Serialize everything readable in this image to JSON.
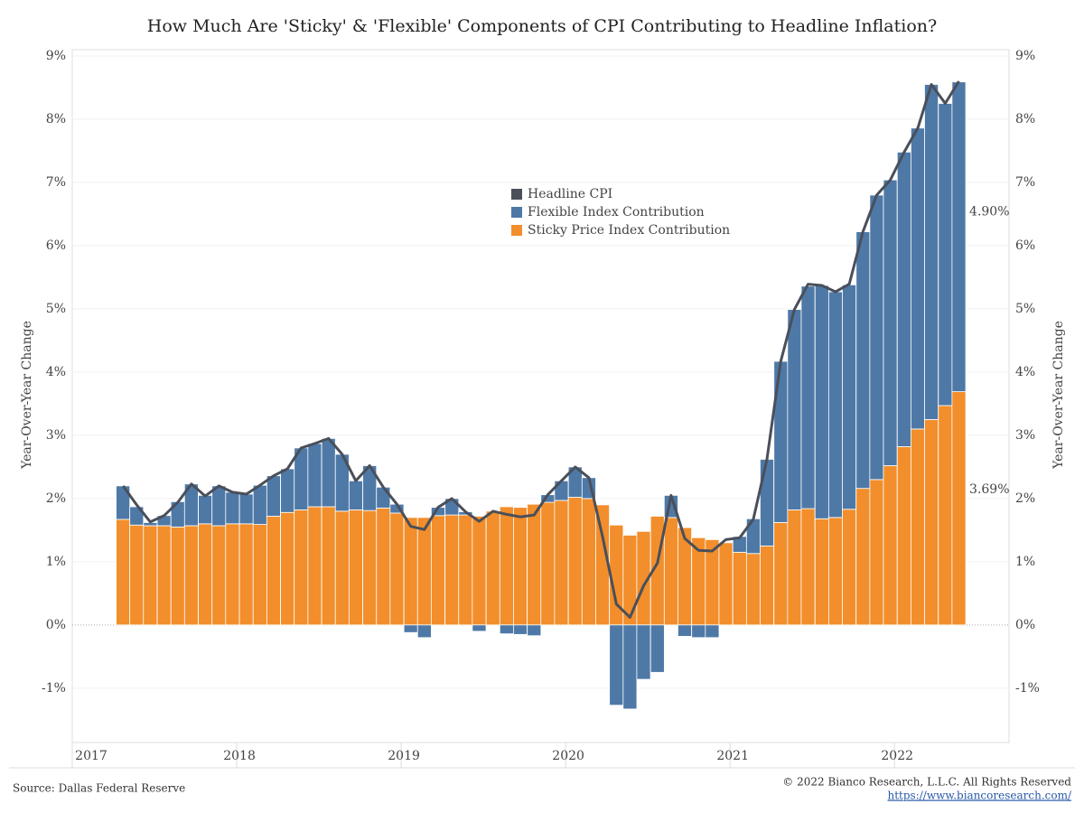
{
  "chart_data": {
    "type": "bar",
    "stacked": true,
    "title": "How Much Are 'Sticky' & 'Flexible' Components of CPI Contributing to Headline Inflation?",
    "ylabel": "Year-Over-Year Change",
    "y2label": "Year-Over-Year Change",
    "source": "Source: Dallas Federal Reserve",
    "copyright": "© 2022 Bianco Research, L.L.C. All Rights Reserved",
    "url": "https://www.biancoresearch.com/",
    "xlim": [
      2017,
      2022.68
    ],
    "xticks": [
      2017,
      2018,
      2019,
      2020,
      2021,
      2022
    ],
    "ylim": [
      -1.86,
      9.1
    ],
    "yticks": [
      {
        "value": -1,
        "label": "-1%"
      },
      {
        "value": 0,
        "label": "0%"
      },
      {
        "value": 1,
        "label": "1%"
      },
      {
        "value": 2,
        "label": "2%"
      },
      {
        "value": 3,
        "label": "3%"
      },
      {
        "value": 4,
        "label": "4%"
      },
      {
        "value": 5,
        "label": "5%"
      },
      {
        "value": 6,
        "label": "6%"
      },
      {
        "value": 7,
        "label": "7%"
      },
      {
        "value": 8,
        "label": "8%"
      },
      {
        "value": 9,
        "label": "9%"
      }
    ],
    "grid": true,
    "x": [
      2017.292,
      2017.375,
      2017.458,
      2017.542,
      2017.625,
      2017.708,
      2017.792,
      2017.875,
      2017.958,
      2018.042,
      2018.125,
      2018.208,
      2018.292,
      2018.375,
      2018.458,
      2018.542,
      2018.625,
      2018.708,
      2018.792,
      2018.875,
      2018.958,
      2019.042,
      2019.125,
      2019.208,
      2019.292,
      2019.375,
      2019.458,
      2019.542,
      2019.625,
      2019.708,
      2019.792,
      2019.875,
      2019.958,
      2020.042,
      2020.125,
      2020.208,
      2020.292,
      2020.375,
      2020.458,
      2020.542,
      2020.625,
      2020.708,
      2020.792,
      2020.875,
      2020.958,
      2021.042,
      2021.125,
      2021.208,
      2021.292,
      2021.375,
      2021.458,
      2021.542,
      2021.625,
      2021.708,
      2021.792,
      2021.875,
      2021.958,
      2022.042,
      2022.125,
      2022.208,
      2022.292,
      2022.375
    ],
    "series": [
      {
        "name": "Headline CPI",
        "type": "line",
        "color": "#4a4f5a",
        "values": [
          2.2,
          1.9,
          1.63,
          1.73,
          1.94,
          2.23,
          2.04,
          2.2,
          2.1,
          2.07,
          2.21,
          2.36,
          2.47,
          2.8,
          2.87,
          2.95,
          2.7,
          2.28,
          2.52,
          2.18,
          1.91,
          1.56,
          1.51,
          1.86,
          2.0,
          1.79,
          1.64,
          1.8,
          1.75,
          1.71,
          1.74,
          2.06,
          2.28,
          2.5,
          2.33,
          1.4,
          0.33,
          0.12,
          0.62,
          0.98,
          2.05,
          1.37,
          1.18,
          1.17,
          1.35,
          1.38,
          1.67,
          2.62,
          4.17,
          4.99,
          5.39,
          5.37,
          5.27,
          5.39,
          6.22,
          6.8,
          7.04,
          7.48,
          7.86,
          8.55,
          8.25,
          8.6
        ]
      },
      {
        "name": "Flexible Index Contribution",
        "type": "bar",
        "color": "#4e79a7",
        "values": [
          0.53,
          0.29,
          0.05,
          0.16,
          0.4,
          0.66,
          0.45,
          0.63,
          0.5,
          0.47,
          0.62,
          0.64,
          0.69,
          0.98,
          1.0,
          1.08,
          0.9,
          0.46,
          0.71,
          0.33,
          0.14,
          -0.12,
          -0.2,
          0.13,
          0.26,
          0.05,
          -0.1,
          0,
          -0.14,
          -0.15,
          -0.17,
          0.12,
          0.31,
          0.48,
          0.33,
          0,
          -1.27,
          -1.33,
          -0.86,
          -0.75,
          0.35,
          -0.18,
          -0.2,
          -0.2,
          0,
          0.25,
          0.55,
          1.37,
          2.55,
          3.17,
          3.52,
          3.69,
          3.57,
          3.55,
          4.06,
          4.5,
          4.52,
          4.66,
          4.76,
          5.3,
          4.78,
          4.9
        ],
        "value_labels": [
          null,
          null,
          null,
          null,
          null,
          null,
          null,
          null,
          null,
          null,
          null,
          null,
          null,
          null,
          null,
          null,
          null,
          null,
          null,
          null,
          null,
          null,
          null,
          null,
          null,
          null,
          null,
          null,
          null,
          null,
          null,
          null,
          null,
          null,
          null,
          null,
          null,
          null,
          null,
          null,
          null,
          null,
          null,
          null,
          null,
          null,
          null,
          null,
          null,
          null,
          null,
          null,
          null,
          null,
          null,
          null,
          null,
          null,
          null,
          null,
          null,
          "4.90%"
        ]
      },
      {
        "name": "Sticky Price Index Contribution",
        "type": "bar",
        "color": "#f28e2b",
        "values": [
          1.67,
          1.58,
          1.57,
          1.57,
          1.55,
          1.57,
          1.6,
          1.57,
          1.6,
          1.6,
          1.59,
          1.72,
          1.78,
          1.82,
          1.87,
          1.87,
          1.8,
          1.82,
          1.81,
          1.85,
          1.77,
          1.7,
          1.7,
          1.73,
          1.74,
          1.74,
          1.72,
          1.8,
          1.87,
          1.86,
          1.91,
          1.94,
          1.97,
          2.02,
          2.0,
          1.9,
          1.58,
          1.42,
          1.48,
          1.72,
          1.7,
          1.54,
          1.38,
          1.35,
          1.3,
          1.15,
          1.13,
          1.25,
          1.62,
          1.82,
          1.84,
          1.68,
          1.7,
          1.83,
          2.16,
          2.3,
          2.52,
          2.82,
          3.1,
          3.25,
          3.47,
          3.69
        ],
        "value_labels": [
          null,
          null,
          null,
          null,
          null,
          null,
          null,
          null,
          null,
          null,
          null,
          null,
          null,
          null,
          null,
          null,
          null,
          null,
          null,
          null,
          null,
          null,
          null,
          null,
          null,
          null,
          null,
          null,
          null,
          null,
          null,
          null,
          null,
          null,
          null,
          null,
          null,
          null,
          null,
          null,
          null,
          null,
          null,
          null,
          null,
          null,
          null,
          null,
          null,
          null,
          null,
          null,
          null,
          null,
          null,
          null,
          null,
          null,
          null,
          null,
          null,
          "3.69%"
        ]
      }
    ]
  }
}
